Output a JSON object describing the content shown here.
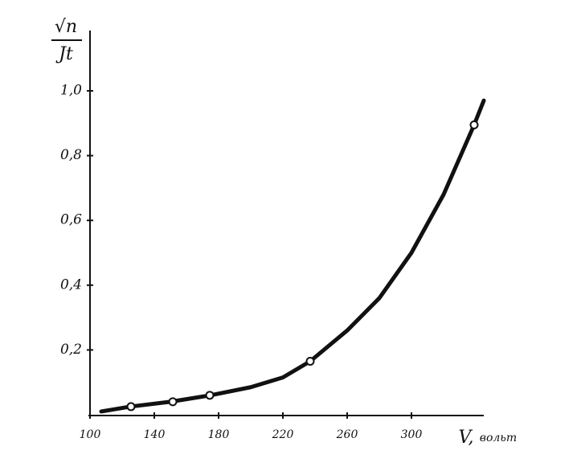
{
  "chart_data": {
    "type": "line",
    "ylabel": [
      "√n",
      "Jt"
    ],
    "xlabel": "V,",
    "xunit": "вольт",
    "xlim": [
      100,
      345
    ],
    "ylim": [
      0,
      1.18
    ],
    "xticks": [
      100,
      140,
      180,
      220,
      260,
      300
    ],
    "yticks": [
      {
        "value": 0.2,
        "label": "0,2"
      },
      {
        "value": 0.4,
        "label": "0,4"
      },
      {
        "value": 0.6,
        "label": "0,6"
      },
      {
        "value": 0.8,
        "label": "0,8"
      },
      {
        "value": 1.0,
        "label": "1,0"
      }
    ],
    "color": "#111",
    "series": [
      {
        "x": [
          107,
          125,
          150,
          175,
          200,
          220,
          237,
          260,
          280,
          300,
          320,
          339,
          345
        ],
        "values": [
          0.01,
          0.025,
          0.04,
          0.06,
          0.085,
          0.115,
          0.165,
          0.26,
          0.36,
          0.5,
          0.68,
          0.895,
          0.97
        ]
      },
      {
        "x": [
          125.5,
          151.5,
          174.5,
          237,
          339
        ],
        "values": [
          0.025,
          0.04,
          0.06,
          0.165,
          0.895
        ]
      }
    ]
  }
}
